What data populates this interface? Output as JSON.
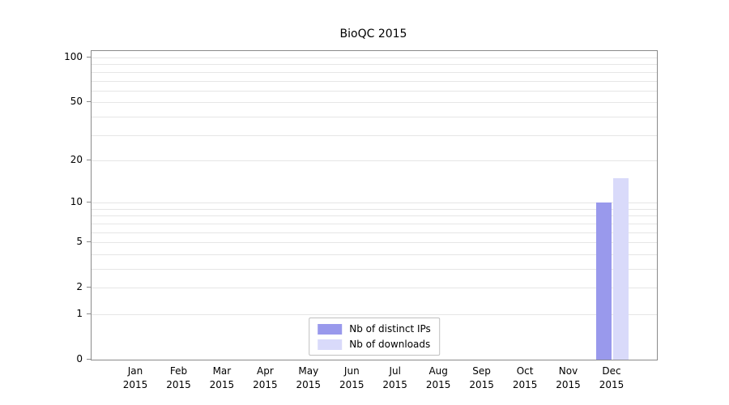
{
  "chart_data": {
    "type": "bar",
    "title": "BioQC 2015",
    "x": {
      "categories": [
        "Jan",
        "Feb",
        "Mar",
        "Apr",
        "May",
        "Jun",
        "Jul",
        "Aug",
        "Sep",
        "Oct",
        "Nov",
        "Dec"
      ],
      "year": "2015"
    },
    "y_axis": {
      "scale": "log1p",
      "max": 100,
      "ticks": [
        100,
        50,
        20,
        10,
        5,
        2,
        1,
        0
      ]
    },
    "series": [
      {
        "name": "Nb of distinct IPs",
        "color": "#9999ec",
        "values": [
          0,
          0,
          0,
          0,
          0,
          0,
          0,
          0,
          0,
          0,
          0,
          10
        ]
      },
      {
        "name": "Nb of downloads",
        "color": "#d9dafa",
        "values": [
          0,
          0,
          0,
          0,
          0,
          0,
          0,
          0,
          0,
          0,
          0,
          15
        ]
      }
    ],
    "legend": {
      "position": "bottom-center",
      "entries": [
        "Nb of distinct IPs",
        "Nb of downloads"
      ]
    },
    "grid": true,
    "colors": {
      "grid": "#e6e6e6",
      "axis": "#8a8a8a",
      "text": "#000000"
    }
  }
}
